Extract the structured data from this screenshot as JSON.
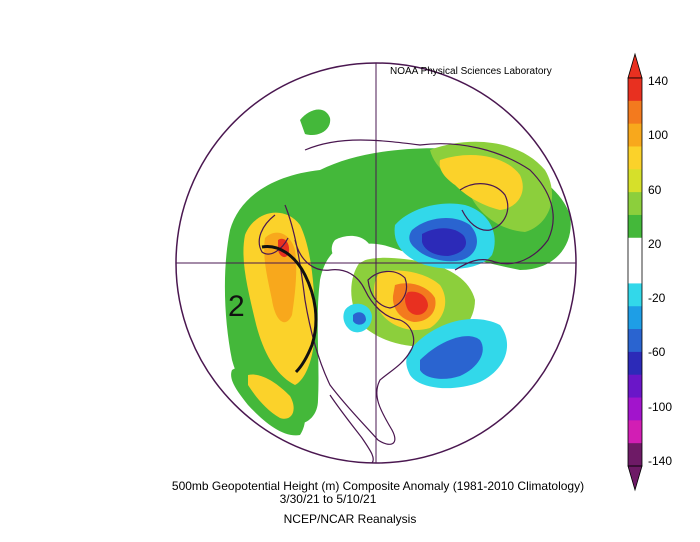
{
  "credit": "NOAA Physical Sciences Laboratory",
  "caption": {
    "line1": "500mb Geopotential Height (m) Composite Anomaly (1981-2010 Climatology)",
    "line2": "3/30/21   to 5/10/21",
    "line3": "NCEP/NCAR Reanalysis"
  },
  "annotation": "2",
  "colorbar": {
    "labels": [
      "140",
      "100",
      "60",
      "20",
      "-20",
      "-60",
      "-100",
      "-140"
    ],
    "colors": [
      "#e83020",
      "#f37a1e",
      "#f8a81c",
      "#fbd22a",
      "#d6e02a",
      "#8ccf3c",
      "#44b83a",
      "#ffffff",
      "#ffffff",
      "#32d8ea",
      "#1e9ee6",
      "#2a64d0",
      "#2c2ab8",
      "#6a16c8",
      "#a214cc",
      "#d21eb4",
      "#6e1a66"
    ]
  },
  "map_colors": {
    "outline": "#4a1750",
    "land_lines": "#000000",
    "ring": "#4a1750"
  }
}
